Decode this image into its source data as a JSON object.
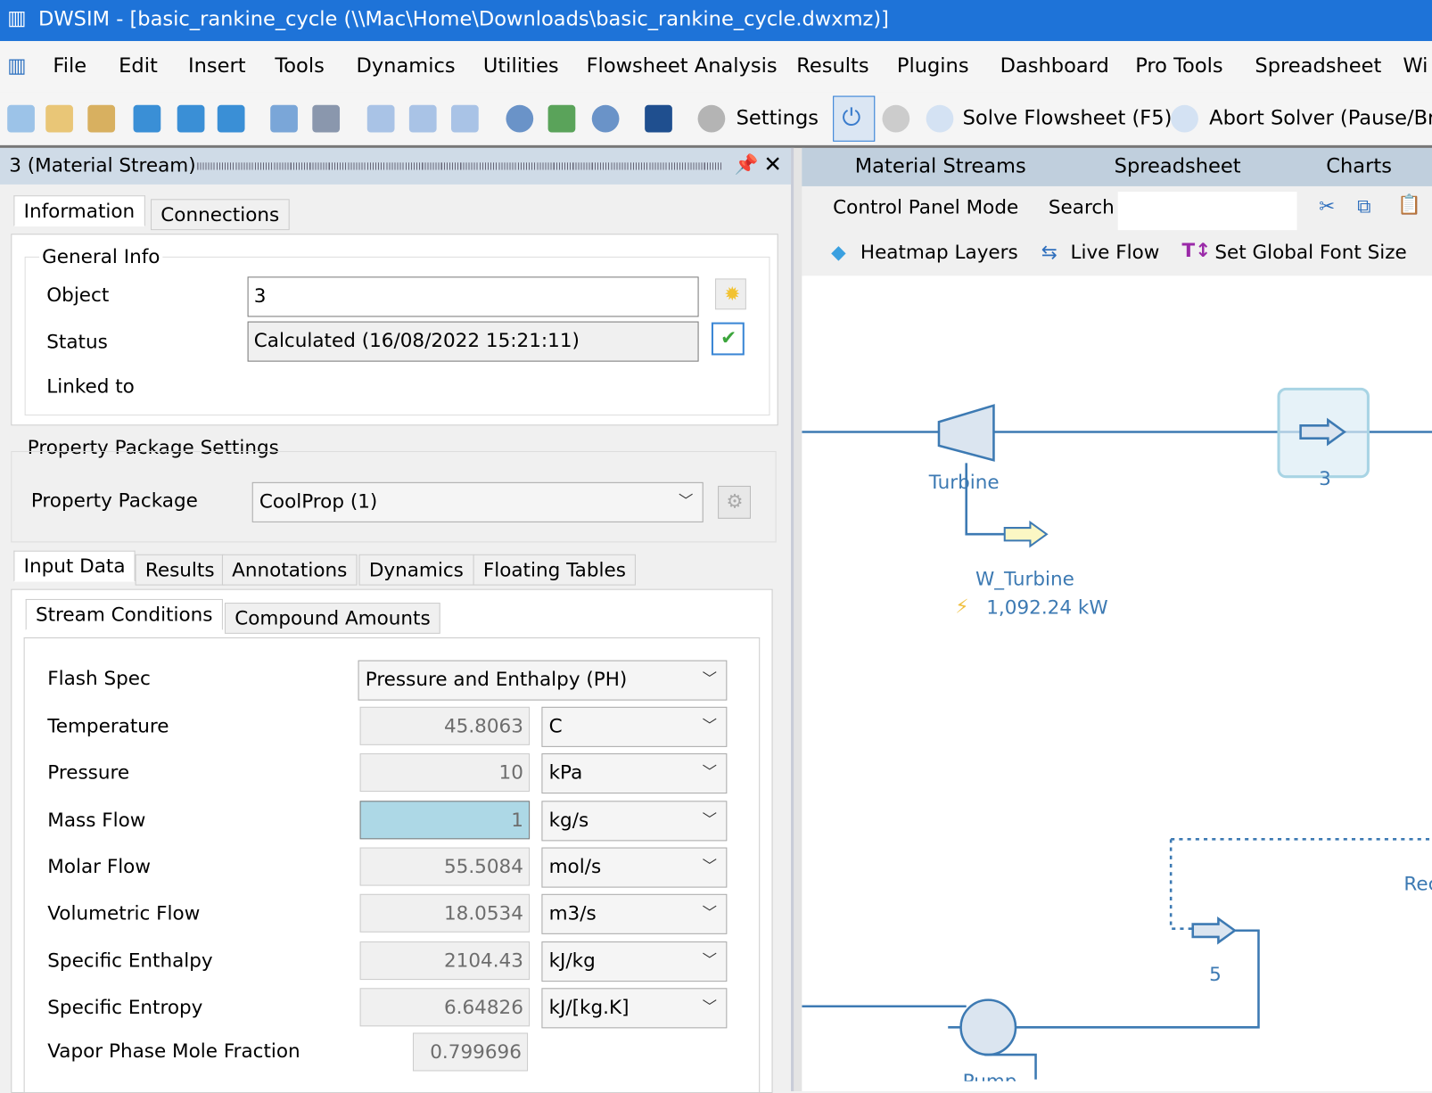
{
  "window": {
    "title": "DWSIM - [basic_rankine_cycle (\\\\Mac\\Home\\Downloads\\basic_rankine_cycle.dwxmz)]"
  },
  "menu": [
    "File",
    "Edit",
    "Insert",
    "Tools",
    "Dynamics",
    "Utilities",
    "Flowsheet Analysis",
    "Results",
    "Plugins",
    "Dashboard",
    "Pro Tools",
    "Spreadsheet",
    "Wi"
  ],
  "toolbar": {
    "settings": "Settings",
    "solve": "Solve Flowsheet (F5)",
    "abort": "Abort Solver (Pause/Bre"
  },
  "editor": {
    "header": "3 (Material Stream)",
    "tabs": [
      "Information",
      "Connections"
    ],
    "general_info": "General Info",
    "object_label": "Object",
    "object_value": "3",
    "status_label": "Status",
    "status_value": "Calculated (16/08/2022 15:21:11)",
    "linked_label": "Linked to",
    "pp_settings": "Property Package Settings",
    "pp_label": "Property Package",
    "pp_value": "CoolProp (1)",
    "data_tabs": [
      "Input Data",
      "Results",
      "Annotations",
      "Dynamics",
      "Floating Tables"
    ],
    "sub_tabs": [
      "Stream Conditions",
      "Compound Amounts"
    ],
    "flash_label": "Flash Spec",
    "flash_value": "Pressure and Enthalpy (PH)",
    "rows": [
      {
        "label": "Temperature",
        "value": "45.8063",
        "unit": "C"
      },
      {
        "label": "Pressure",
        "value": "10",
        "unit": "kPa"
      },
      {
        "label": "Mass Flow",
        "value": "1",
        "unit": "kg/s"
      },
      {
        "label": "Molar Flow",
        "value": "55.5084",
        "unit": "mol/s"
      },
      {
        "label": "Volumetric Flow",
        "value": "18.0534",
        "unit": "m3/s"
      },
      {
        "label": "Specific Enthalpy",
        "value": "2104.43",
        "unit": "kJ/kg"
      },
      {
        "label": "Specific Entropy",
        "value": "6.64826",
        "unit": "kJ/[kg.K]"
      }
    ],
    "vapor_label": "Vapor Phase Mole Fraction",
    "vapor_value": "0.799696"
  },
  "right": {
    "tabs": [
      "Material Streams",
      "Spreadsheet",
      "Charts"
    ],
    "control_panel": "Control Panel Mode",
    "search": "Search",
    "heatmap": "Heatmap Layers",
    "live_flow": "Live Flow",
    "font_size": "Set Global Font Size"
  },
  "flowsheet": {
    "turbine": "Turbine",
    "stream3": "3",
    "w_turbine": "W_Turbine",
    "power": "1,092.24 kW",
    "stream5": "5",
    "rec": "Rec",
    "pump": "Pump"
  }
}
